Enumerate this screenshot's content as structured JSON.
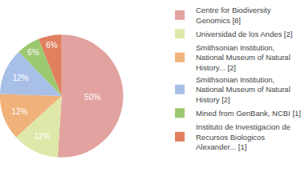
{
  "chart_data": {
    "type": "pie",
    "categories": [
      "Centre for Biodiversity Genomics [8]",
      "Universidad de los Andes [2]",
      "Smithsonian Institution, National Museum of Natural History... [2]",
      "Smithsonian Institution, National Museum of Natural History [2]",
      "Mined from GenBank, NCBI [1]",
      "Instituto de Investigacion de Recursos Biologicos Alexander... [1]"
    ],
    "values": [
      50,
      12,
      12,
      12,
      6,
      6
    ],
    "value_labels": [
      "50%",
      "12%",
      "12%",
      "12%",
      "6%",
      "6%"
    ],
    "colors": [
      "#e2a3a0",
      "#dfe8a8",
      "#f0b27a",
      "#a8bfe8",
      "#9cc870",
      "#e0805f"
    ],
    "data_labels": true,
    "legend": "right"
  }
}
